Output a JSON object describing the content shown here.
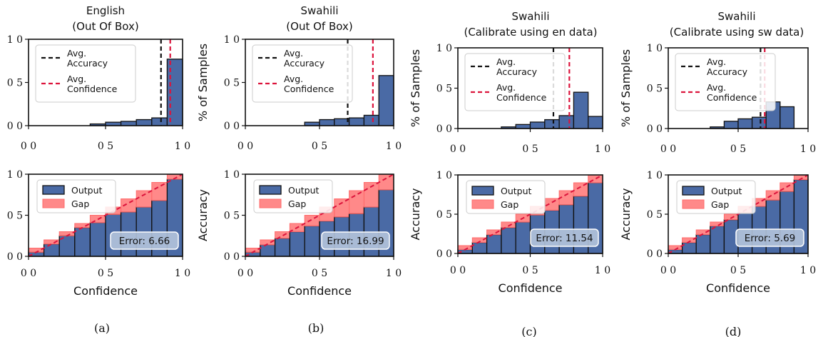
{
  "colors": {
    "bar_fill": "#4a6aa5",
    "bar_edge": "#111111",
    "gap_fill": "#ff6b6b",
    "avg_accuracy_line": "#111111",
    "avg_confidence_line": "#dc143c",
    "diag_line": "#dc143c",
    "error_box": "#b4c4dc"
  },
  "chart_data": [
    {
      "type": "bar",
      "panel": "a",
      "title": [
        "English",
        "(Out Of Box)"
      ],
      "caption": "(a)",
      "top": {
        "ylabel": "% of Samples",
        "xlim": [
          0,
          1
        ],
        "ylim": [
          0,
          1
        ],
        "xticks": [
          0,
          0.5,
          1
        ],
        "xtick_labels": [
          "0 0",
          "0 5",
          "1 0"
        ],
        "yticks": [
          0,
          0.5,
          1
        ],
        "ytick_labels": [
          "0 0",
          "0 5",
          "1 0"
        ],
        "bin_width": 0.1,
        "bins": [
          0.0,
          0.1,
          0.2,
          0.3,
          0.4,
          0.5,
          0.6,
          0.7,
          0.8,
          0.9
        ],
        "values": [
          0.0,
          0.0,
          0.0,
          0.0,
          0.02,
          0.04,
          0.05,
          0.07,
          0.09,
          0.77
        ],
        "avg_accuracy": 0.86,
        "avg_confidence": 0.92,
        "legend": {
          "placement": "upper-left",
          "accuracy_label": [
            "Avg.",
            "Accuracy"
          ],
          "confidence_label": [
            "Avg.",
            "Confidence"
          ]
        }
      },
      "bottom": {
        "xlabel": "Confidence",
        "ylabel": "Accuracy",
        "xlim": [
          0,
          1
        ],
        "ylim": [
          0,
          1
        ],
        "xticks": [
          0,
          0.5,
          1
        ],
        "xtick_labels": [
          "0 0",
          "0 5",
          "1 0"
        ],
        "yticks": [
          0,
          0.5,
          1
        ],
        "ytick_labels": [
          "0 0",
          "0 5",
          "1 0"
        ],
        "bins": [
          0.0,
          0.1,
          0.2,
          0.3,
          0.4,
          0.5,
          0.6,
          0.7,
          0.8,
          0.9
        ],
        "output": [
          0.05,
          0.15,
          0.25,
          0.35,
          0.41,
          0.51,
          0.54,
          0.6,
          0.68,
          0.94
        ],
        "legend": {
          "placement": "upper-left",
          "output_label": "Output",
          "gap_label": "Gap"
        },
        "error_label": "Error:  6.66"
      }
    },
    {
      "type": "bar",
      "panel": "b",
      "title": [
        "Swahili",
        "(Out Of Box)"
      ],
      "caption": "(b)",
      "top": {
        "ylabel": "% of Samples",
        "xlim": [
          0,
          1
        ],
        "ylim": [
          0,
          1
        ],
        "xticks": [
          0,
          0.5,
          1
        ],
        "xtick_labels": [
          "0 0",
          "0 5",
          "1 0"
        ],
        "yticks": [
          0,
          0.5,
          1
        ],
        "ytick_labels": [
          "0 0",
          "0 5",
          "1 0"
        ],
        "bin_width": 0.1,
        "bins": [
          0.0,
          0.1,
          0.2,
          0.3,
          0.4,
          0.5,
          0.6,
          0.7,
          0.8,
          0.9
        ],
        "values": [
          0.0,
          0.0,
          0.0,
          0.0,
          0.04,
          0.07,
          0.08,
          0.09,
          0.12,
          0.58
        ],
        "avg_accuracy": 0.69,
        "avg_confidence": 0.86,
        "legend": {
          "placement": "upper-left",
          "accuracy_label": [
            "Avg.",
            "Accuracy"
          ],
          "confidence_label": [
            "Avg.",
            "Confidence"
          ]
        }
      },
      "bottom": {
        "xlabel": "Confidence",
        "ylabel": "Accuracy",
        "xlim": [
          0,
          1
        ],
        "ylim": [
          0,
          1
        ],
        "xticks": [
          0,
          0.5,
          1
        ],
        "xtick_labels": [
          "0 0",
          "0 5",
          "1 0"
        ],
        "yticks": [
          0,
          0.5,
          1
        ],
        "ytick_labels": [
          "0 0",
          "0 5",
          "1 0"
        ],
        "bins": [
          0.0,
          0.1,
          0.2,
          0.3,
          0.4,
          0.5,
          0.6,
          0.7,
          0.8,
          0.9
        ],
        "output": [
          0.05,
          0.14,
          0.22,
          0.3,
          0.37,
          0.43,
          0.48,
          0.52,
          0.6,
          0.81
        ],
        "legend": {
          "placement": "upper-left",
          "output_label": "Output",
          "gap_label": "Gap"
        },
        "error_label": "Error:  16.99"
      }
    },
    {
      "type": "bar",
      "panel": "c",
      "title": [
        "Swahili",
        "(Calibrate using en data)"
      ],
      "caption": "(c)",
      "top": {
        "ylabel": "% of Samples",
        "xlim": [
          0,
          1
        ],
        "ylim": [
          0,
          1
        ],
        "xticks": [
          0,
          0.5,
          1
        ],
        "xtick_labels": [
          "0 0",
          "0 5",
          "1 0"
        ],
        "yticks": [
          0,
          0.5,
          1
        ],
        "ytick_labels": [
          "0 0",
          "0 5",
          "1 0"
        ],
        "bin_width": 0.1,
        "bins": [
          0.0,
          0.1,
          0.2,
          0.3,
          0.4,
          0.5,
          0.6,
          0.7,
          0.8,
          0.9
        ],
        "values": [
          0.0,
          0.0,
          0.0,
          0.02,
          0.05,
          0.08,
          0.11,
          0.16,
          0.45,
          0.15
        ],
        "avg_accuracy": 0.66,
        "avg_confidence": 0.77,
        "legend": {
          "placement": "upper-left",
          "accuracy_label": [
            "Avg.",
            "Accuracy"
          ],
          "confidence_label": [
            "Avg.",
            "Confidence"
          ]
        }
      },
      "bottom": {
        "xlabel": "Confidence",
        "ylabel": "Accuracy",
        "xlim": [
          0,
          1
        ],
        "ylim": [
          0,
          1
        ],
        "xticks": [
          0,
          0.5,
          1
        ],
        "xtick_labels": [
          "0 0",
          "0 5",
          "1 0"
        ],
        "yticks": [
          0,
          0.5,
          1
        ],
        "ytick_labels": [
          "0 0",
          "0 5",
          "1 0"
        ],
        "bins": [
          0.0,
          0.1,
          0.2,
          0.3,
          0.4,
          0.5,
          0.6,
          0.7,
          0.8,
          0.9
        ],
        "output": [
          0.05,
          0.14,
          0.24,
          0.33,
          0.4,
          0.49,
          0.55,
          0.62,
          0.73,
          0.9
        ],
        "legend": {
          "placement": "upper-left",
          "output_label": "Output",
          "gap_label": "Gap"
        },
        "error_label": "Error:  11.54"
      }
    },
    {
      "type": "bar",
      "panel": "d",
      "title": [
        "Swahili",
        "(Calibrate using sw data)"
      ],
      "caption": "(d)",
      "top": {
        "ylabel": "% of Samples",
        "xlim": [
          0,
          1
        ],
        "ylim": [
          0,
          1
        ],
        "xticks": [
          0,
          0.5,
          1
        ],
        "xtick_labels": [
          "0 0",
          "0 5",
          "1 0"
        ],
        "yticks": [
          0,
          0.5,
          1
        ],
        "ytick_labels": [
          "0 0",
          "0 5",
          "1 0"
        ],
        "bin_width": 0.1,
        "bins": [
          0.0,
          0.1,
          0.2,
          0.3,
          0.4,
          0.5,
          0.6,
          0.7,
          0.8,
          0.9
        ],
        "values": [
          0.0,
          0.0,
          0.0,
          0.02,
          0.09,
          0.12,
          0.14,
          0.33,
          0.27,
          0.0
        ],
        "avg_accuracy": 0.66,
        "avg_confidence": 0.69,
        "legend": {
          "placement": "upper-left",
          "accuracy_label": [
            "Avg.",
            "Accuracy"
          ],
          "confidence_label": [
            "Avg.",
            "Confidence"
          ]
        }
      },
      "bottom": {
        "xlabel": "Confidence",
        "ylabel": "Accuracy",
        "xlim": [
          0,
          1
        ],
        "ylim": [
          0,
          1
        ],
        "xticks": [
          0,
          0.5,
          1
        ],
        "xtick_labels": [
          "0 0",
          "0 5",
          "1 0"
        ],
        "yticks": [
          0,
          0.5,
          1
        ],
        "ytick_labels": [
          "0 0",
          "0 5",
          "1 0"
        ],
        "bins": [
          0.0,
          0.1,
          0.2,
          0.3,
          0.4,
          0.5,
          0.6,
          0.7,
          0.8,
          0.9
        ],
        "output": [
          0.05,
          0.14,
          0.24,
          0.35,
          0.43,
          0.52,
          0.6,
          0.68,
          0.79,
          0.94
        ],
        "legend": {
          "placement": "upper-left",
          "output_label": "Output",
          "gap_label": "Gap"
        },
        "error_label": "Error:  5.69"
      }
    }
  ]
}
